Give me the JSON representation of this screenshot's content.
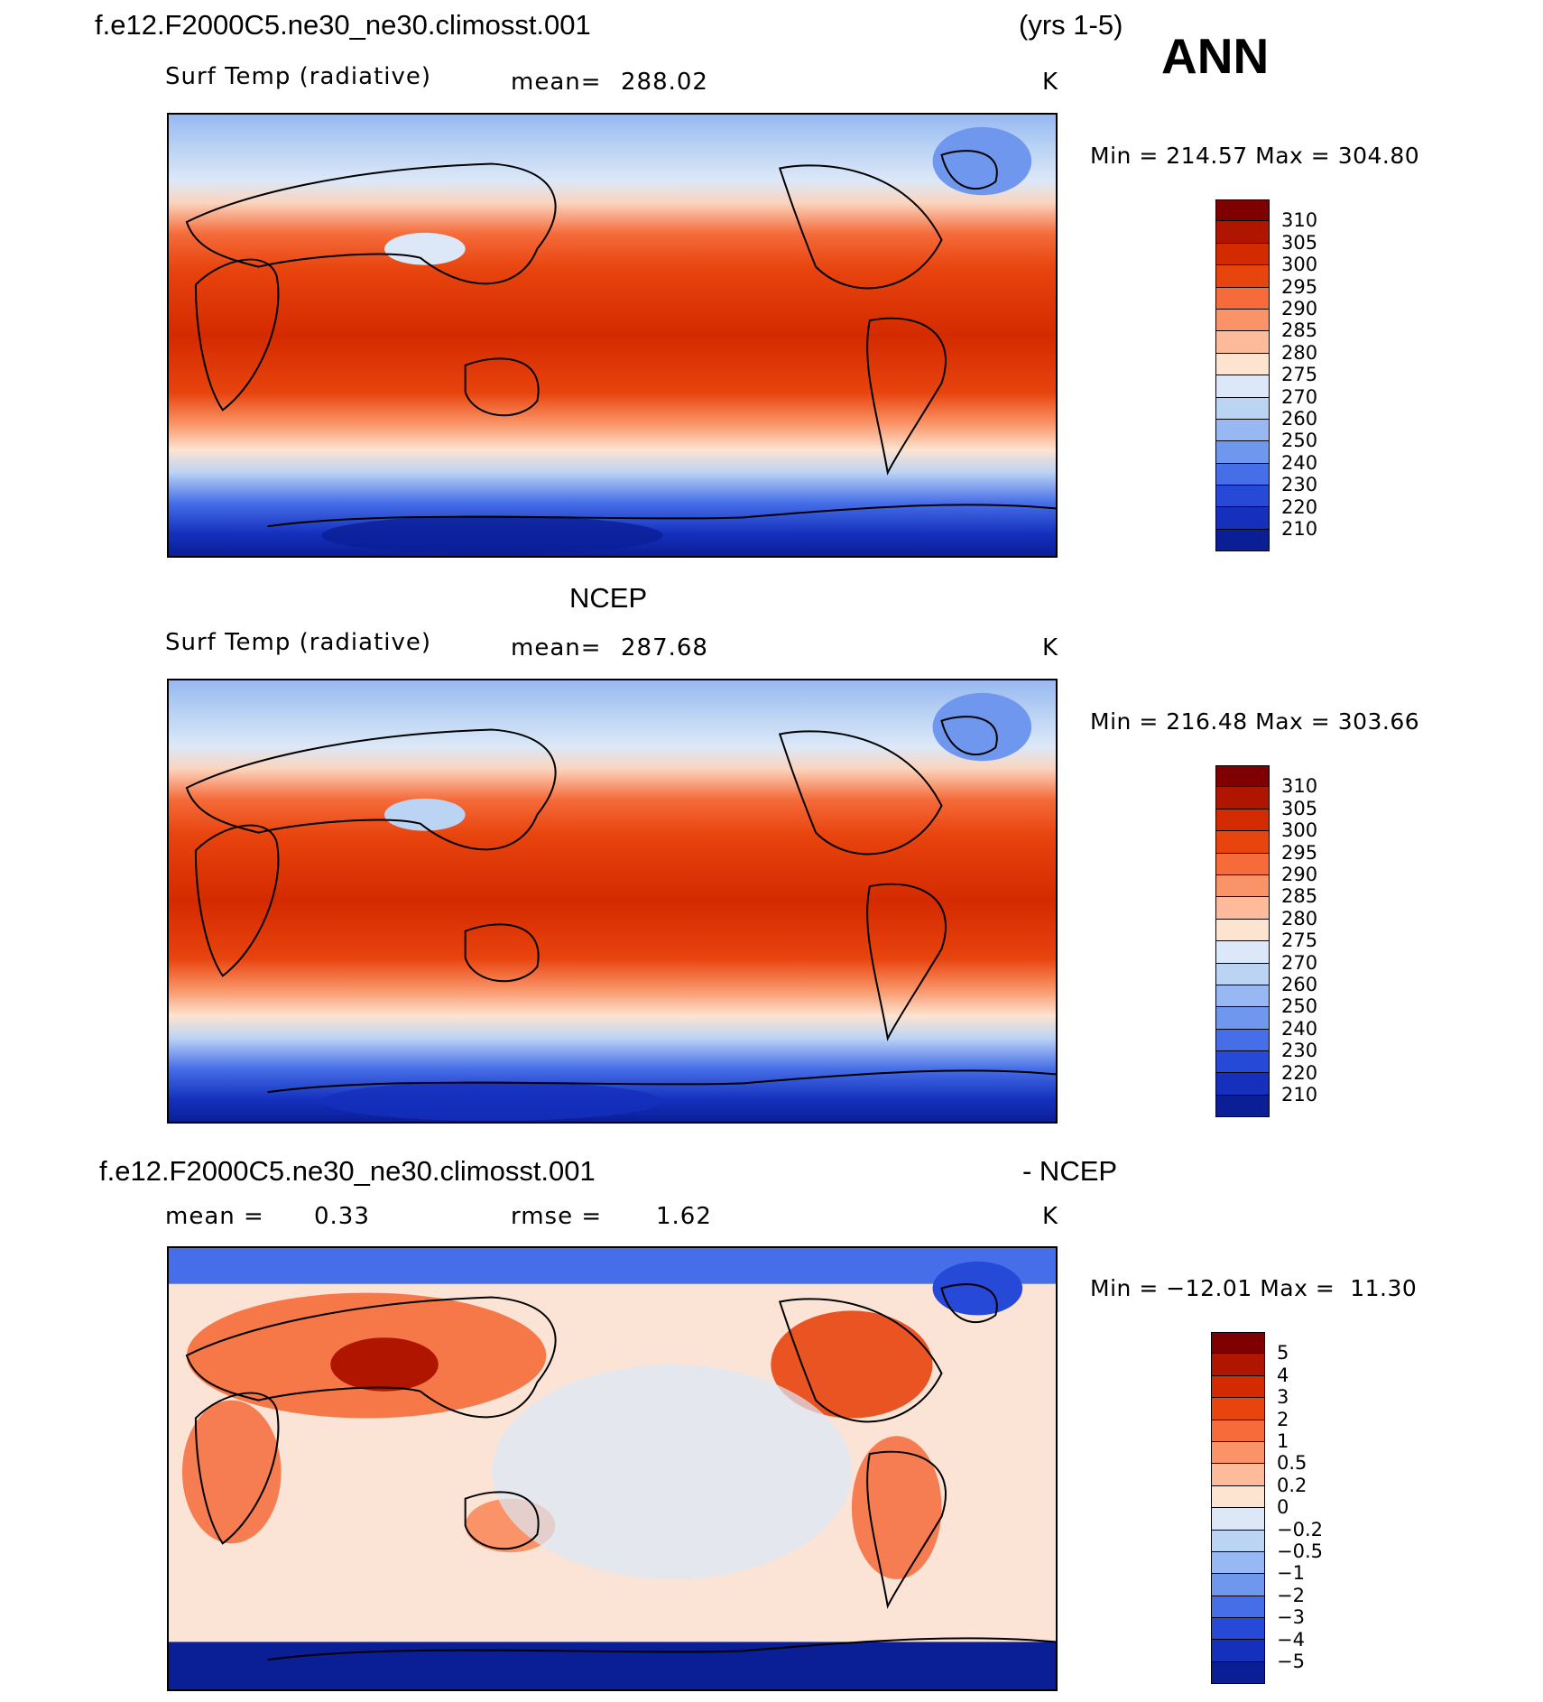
{
  "header": {
    "case_name": "f.e12.F2000C5.ne30_ne30.climosst.001",
    "years": "(yrs 1-5)",
    "season": "ANN"
  },
  "panels": [
    {
      "id": "model",
      "variable": "Surf Temp (radiative)",
      "mean_label": "mean=",
      "mean_value": "288.02",
      "units": "K",
      "min_label": "Min",
      "min_value": "214.57",
      "max_label": "Max",
      "max_value": "304.80"
    },
    {
      "id": "obs",
      "title": "NCEP",
      "variable": "Surf Temp (radiative)",
      "mean_label": "mean=",
      "mean_value": "287.68",
      "units": "K",
      "min_label": "Min",
      "min_value": "216.48",
      "max_label": "Max",
      "max_value": "303.66"
    },
    {
      "id": "diff",
      "title_left": "f.e12.F2000C5.ne30_ne30.climosst.001",
      "title_right": "- NCEP",
      "mean_label": "mean =",
      "mean_value": "0.33",
      "rmse_label": "rmse =",
      "rmse_value": "1.62",
      "units": "K",
      "min_label": "Min",
      "min_value": "−12.01",
      "max_label": "Max",
      "max_value": "11.30"
    }
  ],
  "colorbars": {
    "temperature": {
      "colors": [
        "#7f0000",
        "#b01500",
        "#d42a00",
        "#e8440e",
        "#f56b3a",
        "#fa9468",
        "#fdbb9b",
        "#fde4d0",
        "#dce8f8",
        "#bcd4f4",
        "#97b8f2",
        "#6f97ee",
        "#466ee8",
        "#2749d8",
        "#1430bd",
        "#0a1e96"
      ],
      "labels": [
        "310",
        "305",
        "300",
        "295",
        "290",
        "285",
        "280",
        "275",
        "270",
        "260",
        "250",
        "240",
        "230",
        "220",
        "210"
      ]
    },
    "difference": {
      "colors": [
        "#7f0000",
        "#b01500",
        "#d42a00",
        "#e8440e",
        "#f56b3a",
        "#fa9468",
        "#fdbb9b",
        "#fde4d0",
        "#dce8f8",
        "#bcd4f4",
        "#97b8f2",
        "#6f97ee",
        "#466ee8",
        "#2749d8",
        "#1430bd",
        "#0a1e96"
      ],
      "labels": [
        "5",
        "4",
        "3",
        "2",
        "1",
        "0.5",
        "0.2",
        "0",
        "−0.2",
        "−0.5",
        "−1",
        "−2",
        "−3",
        "−4",
        "−5"
      ]
    }
  }
}
